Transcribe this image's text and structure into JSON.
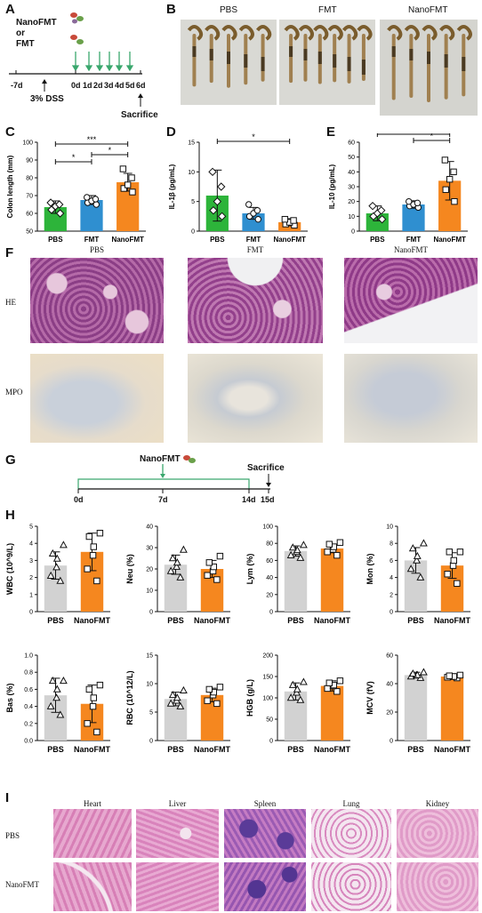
{
  "panels": {
    "A": {
      "label": "A",
      "treat1": "NanoFMT",
      "or": "or",
      "treat2": "FMT",
      "days": [
        "-7d",
        "0d",
        "1d",
        "2d",
        "3d",
        "4d",
        "5d",
        "6d"
      ],
      "dss": "3% DSS",
      "sacrifice": "Sacrifice"
    },
    "B": {
      "label": "B",
      "groups": [
        "PBS",
        "FMT",
        "NanoFMT"
      ]
    },
    "C": {
      "label": "C"
    },
    "D": {
      "label": "D"
    },
    "E": {
      "label": "E"
    },
    "F": {
      "label": "F",
      "cols": [
        "PBS",
        "FMT",
        "NanoFMT"
      ],
      "rows": [
        "HE",
        "MPO"
      ]
    },
    "G": {
      "label": "G",
      "treat": "NanoFMT",
      "sacrifice": "Sacrifice",
      "days": [
        "0d",
        "7d",
        "14d",
        "15d"
      ]
    },
    "H": {
      "label": "H"
    },
    "I": {
      "label": "I",
      "cols": [
        "Heart",
        "Liver",
        "Spleen",
        "Lung",
        "Kidney"
      ],
      "rows": [
        "PBS",
        "NanoFMT"
      ]
    }
  },
  "colors": {
    "pbs": "#2db43a",
    "fmt": "#2f8fd0",
    "nano": "#f5871f",
    "gray": "#d2d2d2",
    "green_line": "#3aa76d"
  },
  "chart_data": [
    {
      "type": "bar",
      "panel": "C",
      "ylabel": "Colon length (mm)",
      "ylim": [
        50,
        100
      ],
      "yticks": [
        50,
        60,
        70,
        80,
        90,
        100
      ],
      "categories": [
        "PBS",
        "FMT",
        "NanoFMT"
      ],
      "values": [
        63.5,
        67.5,
        77.5
      ],
      "errors": [
        3.5,
        2.5,
        5
      ],
      "points": [
        [
          60,
          62,
          64,
          65,
          66
        ],
        [
          65,
          66,
          67,
          68,
          69
        ],
        [
          72,
          74,
          76,
          80,
          85
        ]
      ],
      "markers": [
        "diamond",
        "circle",
        "square"
      ],
      "sig": [
        {
          "from": 0,
          "to": 1,
          "label": "*"
        },
        {
          "from": 1,
          "to": 2,
          "label": "*"
        },
        {
          "from": 0,
          "to": 2,
          "label": "***"
        }
      ]
    },
    {
      "type": "bar",
      "panel": "D",
      "ylabel": "IL-1β (pg/mL)",
      "ylim": [
        0,
        15
      ],
      "yticks": [
        0,
        5,
        10,
        15
      ],
      "categories": [
        "PBS",
        "FMT",
        "NanoFMT"
      ],
      "values": [
        6,
        3,
        1.5
      ],
      "errors": [
        4.3,
        1,
        0.6
      ],
      "points": [
        [
          2.5,
          3.5,
          5,
          7.5,
          10
        ],
        [
          2,
          2.5,
          3,
          3.5,
          4.5
        ],
        [
          1,
          1.2,
          1.5,
          1.8,
          2
        ]
      ],
      "markers": [
        "diamond",
        "circle",
        "square"
      ],
      "sig": [
        {
          "from": 0,
          "to": 2,
          "label": "*"
        }
      ]
    },
    {
      "type": "bar",
      "panel": "E",
      "ylabel": "IL-10 (pg/mL)",
      "ylim": [
        0,
        60
      ],
      "yticks": [
        0,
        10,
        20,
        30,
        40,
        50,
        60
      ],
      "categories": [
        "PBS",
        "FMT",
        "NanoFMT"
      ],
      "values": [
        12,
        18,
        34
      ],
      "errors": [
        5,
        2.5,
        13
      ],
      "points": [
        [
          8,
          10,
          12,
          14,
          17
        ],
        [
          16,
          17,
          18,
          19,
          20
        ],
        [
          20,
          28,
          35,
          40,
          48
        ]
      ],
      "markers": [
        "diamond",
        "circle",
        "square"
      ],
      "sig": [
        {
          "from": 1,
          "to": 2,
          "label": "*"
        },
        {
          "from": 0,
          "to": 2,
          "label": "***"
        }
      ]
    },
    {
      "type": "bar",
      "panel": "H1",
      "ylabel": "WBC (10^9/L)",
      "ylim": [
        0,
        5
      ],
      "yticks": [
        0,
        1,
        2,
        3,
        4,
        5
      ],
      "categories": [
        "PBS",
        "NanoFMT"
      ],
      "values": [
        2.7,
        3.5
      ],
      "errors": [
        0.8,
        1.1
      ],
      "points": [
        [
          1.8,
          2.1,
          2.6,
          3.1,
          3.4,
          3.9
        ],
        [
          1.8,
          2.5,
          3.3,
          3.8,
          4.4,
          4.6
        ]
      ],
      "markers": [
        "triangle",
        "square"
      ]
    },
    {
      "type": "bar",
      "panel": "H2",
      "ylabel": "Neu (%)",
      "ylim": [
        0,
        40
      ],
      "yticks": [
        0,
        10,
        20,
        30,
        40
      ],
      "categories": [
        "PBS",
        "NanoFMT"
      ],
      "values": [
        22,
        20
      ],
      "errors": [
        4.5,
        4
      ],
      "points": [
        [
          16,
          19,
          21,
          23,
          25,
          29
        ],
        [
          15,
          17,
          19,
          21,
          23,
          26
        ]
      ],
      "markers": [
        "triangle",
        "square"
      ]
    },
    {
      "type": "bar",
      "panel": "H3",
      "ylabel": "Lym (%)",
      "ylim": [
        0,
        100
      ],
      "yticks": [
        0,
        20,
        40,
        60,
        80,
        100
      ],
      "categories": [
        "PBS",
        "NanoFMT"
      ],
      "values": [
        71,
        74
      ],
      "errors": [
        6,
        5
      ],
      "points": [
        [
          63,
          66,
          70,
          72,
          75,
          78
        ],
        [
          66,
          70,
          73,
          76,
          79,
          81
        ]
      ],
      "markers": [
        "triangle",
        "square"
      ]
    },
    {
      "type": "bar",
      "panel": "H4",
      "ylabel": "Mon (%)",
      "ylim": [
        0,
        10
      ],
      "yticks": [
        0,
        2,
        4,
        6,
        8,
        10
      ],
      "categories": [
        "PBS",
        "NanoFMT"
      ],
      "values": [
        6,
        5.4
      ],
      "errors": [
        1.5,
        1.5
      ],
      "points": [
        [
          4,
          5,
          6,
          6.5,
          7.4,
          8
        ],
        [
          3.3,
          4.4,
          5.4,
          6,
          7,
          7
        ]
      ],
      "markers": [
        "triangle",
        "square"
      ]
    },
    {
      "type": "bar",
      "panel": "H5",
      "ylabel": "Bas (%)",
      "ylim": [
        0,
        1
      ],
      "yticks": [
        0,
        0.2,
        0.4,
        0.6,
        0.8,
        1.0
      ],
      "categories": [
        "PBS",
        "NanoFMT"
      ],
      "values": [
        0.53,
        0.43
      ],
      "errors": [
        0.2,
        0.22
      ],
      "points": [
        [
          0.3,
          0.4,
          0.5,
          0.6,
          0.7,
          0.7
        ],
        [
          0.1,
          0.2,
          0.4,
          0.5,
          0.6,
          0.65
        ]
      ],
      "markers": [
        "triangle",
        "square"
      ]
    },
    {
      "type": "bar",
      "panel": "H6",
      "ylabel": "RBC (10^12/L)",
      "ylim": [
        0,
        15
      ],
      "yticks": [
        0,
        5,
        10,
        15
      ],
      "categories": [
        "PBS",
        "NanoFMT"
      ],
      "values": [
        7.3,
        8
      ],
      "errors": [
        1.2,
        1.2
      ],
      "points": [
        [
          6,
          6.5,
          7,
          7.5,
          8,
          8.8
        ],
        [
          6.5,
          7,
          8,
          8.5,
          9,
          9.4
        ]
      ],
      "markers": [
        "triangle",
        "square"
      ]
    },
    {
      "type": "bar",
      "panel": "H7",
      "ylabel": "HGB (g/L)",
      "ylim": [
        0,
        200
      ],
      "yticks": [
        0,
        50,
        100,
        150,
        200
      ],
      "categories": [
        "PBS",
        "NanoFMT"
      ],
      "values": [
        115,
        128
      ],
      "errors": [
        20,
        12
      ],
      "points": [
        [
          95,
          100,
          112,
          120,
          130,
          137
        ],
        [
          115,
          122,
          128,
          130,
          135,
          140
        ]
      ],
      "markers": [
        "triangle",
        "square"
      ]
    },
    {
      "type": "bar",
      "panel": "H8",
      "ylabel": "MCV (fV)",
      "ylim": [
        0,
        60
      ],
      "yticks": [
        0,
        20,
        40,
        60
      ],
      "categories": [
        "PBS",
        "NanoFMT"
      ],
      "values": [
        46,
        45
      ],
      "errors": [
        2,
        1
      ],
      "points": [
        [
          44,
          45,
          46,
          46,
          47,
          48
        ],
        [
          44,
          44.5,
          45,
          45,
          45.5,
          46
        ]
      ],
      "markers": [
        "triangle",
        "square"
      ]
    }
  ]
}
